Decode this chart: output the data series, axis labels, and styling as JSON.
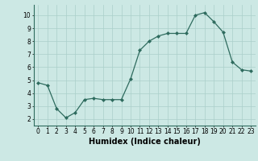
{
  "x": [
    0,
    1,
    2,
    3,
    4,
    5,
    6,
    7,
    8,
    9,
    10,
    11,
    12,
    13,
    14,
    15,
    16,
    17,
    18,
    19,
    20,
    21,
    22,
    23
  ],
  "y": [
    4.8,
    4.6,
    2.8,
    2.1,
    2.5,
    3.5,
    3.6,
    3.5,
    3.5,
    3.5,
    5.1,
    7.3,
    8.0,
    8.4,
    8.6,
    8.6,
    8.6,
    10.0,
    10.2,
    9.5,
    8.7,
    6.4,
    5.8,
    5.7
  ],
  "xlabel": "Humidex (Indice chaleur)",
  "ylim": [
    1.5,
    10.8
  ],
  "xlim": [
    -0.5,
    23.5
  ],
  "yticks": [
    2,
    3,
    4,
    5,
    6,
    7,
    8,
    9,
    10
  ],
  "xticks": [
    0,
    1,
    2,
    3,
    4,
    5,
    6,
    7,
    8,
    9,
    10,
    11,
    12,
    13,
    14,
    15,
    16,
    17,
    18,
    19,
    20,
    21,
    22,
    23
  ],
  "line_color": "#2e6b5e",
  "marker_color": "#2e6b5e",
  "bg_color": "#cce8e4",
  "grid_color": "#aacfca",
  "axis_color": "#2e6b5e",
  "tick_fontsize": 5.5,
  "xlabel_fontsize": 7
}
